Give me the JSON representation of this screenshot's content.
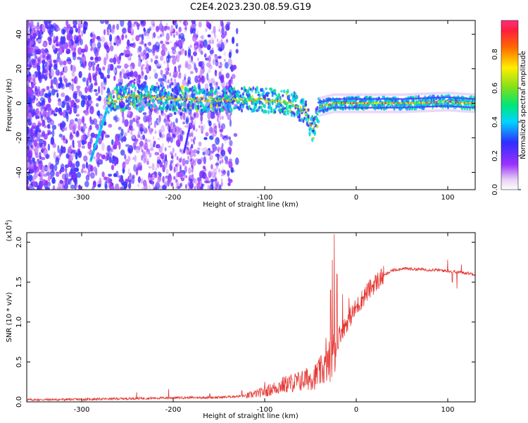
{
  "title": "C2E4.2023.230.08.59.G19",
  "chart_data": [
    {
      "type": "heatmap",
      "xlabel": "Height of straight line (km)",
      "ylabel": "Frequency (Hz)",
      "xlim": [
        -360,
        130
      ],
      "ylim": [
        -50,
        48
      ],
      "xticks": [
        "-300",
        "-200",
        "-100",
        "0",
        "100"
      ],
      "yticks": [
        "-40",
        "-20",
        "0",
        "20",
        "40"
      ],
      "colorbar": {
        "label": "Normalized spectral amplitude",
        "range": [
          0,
          1
        ],
        "ticks": [
          "0.0",
          "0.2",
          "0.4",
          "0.6",
          "0.8"
        ]
      },
      "signal_trace": {
        "description_points": [
          {
            "x": -290,
            "y": -33
          },
          {
            "x": -272,
            "y": 0
          },
          {
            "x": -250,
            "y": 4
          },
          {
            "x": -200,
            "y": 3
          },
          {
            "x": -150,
            "y": 2
          },
          {
            "x": -100,
            "y": 2
          },
          {
            "x": -70,
            "y": 0
          },
          {
            "x": -55,
            "y": -6
          },
          {
            "x": -47,
            "y": -16
          },
          {
            "x": -40,
            "y": -2
          },
          {
            "x": -25,
            "y": 0
          },
          {
            "x": 0,
            "y": 0
          },
          {
            "x": 50,
            "y": 0
          },
          {
            "x": 100,
            "y": 1
          },
          {
            "x": 130,
            "y": 0
          }
        ]
      }
    },
    {
      "type": "line",
      "xlabel": "Height of straight line (km)",
      "ylabel": "SNR (10 * v/v)",
      "scale_note": "(x10",
      "scale_exp": "4",
      "scale_close": ")",
      "xlim": [
        -360,
        130
      ],
      "ylim": [
        0,
        2.12
      ],
      "xticks": [
        "-300",
        "-200",
        "-100",
        "0",
        "100"
      ],
      "yticks": [
        "0.0",
        "0.5",
        "1.0",
        "1.5",
        "2.0"
      ],
      "color": "#e53935",
      "series": [
        {
          "envelope": [
            [
              -360,
              0.02
            ],
            [
              -300,
              0.025
            ],
            [
              -250,
              0.035
            ],
            [
              -200,
              0.045
            ],
            [
              -150,
              0.05
            ],
            [
              -120,
              0.07
            ],
            [
              -100,
              0.12
            ],
            [
              -80,
              0.2
            ],
            [
              -60,
              0.25
            ],
            [
              -45,
              0.3
            ],
            [
              -35,
              0.4
            ],
            [
              -28,
              0.5
            ],
            [
              -25,
              0.55
            ],
            [
              -22,
              0.7
            ],
            [
              -18,
              0.85
            ],
            [
              -10,
              1.0
            ],
            [
              0,
              1.18
            ],
            [
              10,
              1.35
            ],
            [
              20,
              1.48
            ],
            [
              30,
              1.58
            ],
            [
              40,
              1.65
            ],
            [
              50,
              1.67
            ],
            [
              70,
              1.66
            ],
            [
              90,
              1.65
            ],
            [
              110,
              1.63
            ],
            [
              130,
              1.6
            ]
          ],
          "spikes": [
            [
              -240,
              0.12
            ],
            [
              -205,
              0.16
            ],
            [
              -160,
              0.1
            ],
            [
              -125,
              0.14
            ],
            [
              -100,
              0.25
            ],
            [
              -75,
              0.3
            ],
            [
              -55,
              0.38
            ],
            [
              -42,
              0.48
            ],
            [
              -33,
              0.8
            ],
            [
              -28,
              1.4
            ],
            [
              -26,
              1.78
            ],
            [
              -24,
              2.1
            ],
            [
              -21,
              1.6
            ],
            [
              -15,
              1.35
            ],
            [
              -8,
              1.3
            ],
            [
              100,
              1.78
            ],
            [
              105,
              1.5
            ],
            [
              110,
              1.42
            ],
            [
              115,
              1.72
            ]
          ]
        }
      ]
    }
  ]
}
